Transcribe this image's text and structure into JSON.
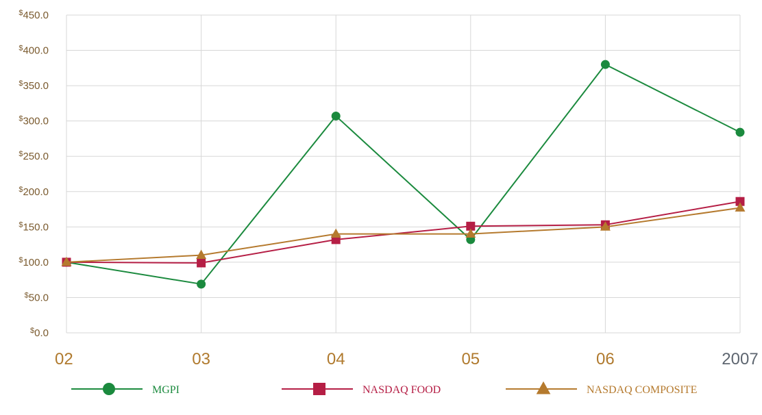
{
  "chart_data": {
    "type": "line",
    "title": "",
    "xlabel": "",
    "ylabel": "",
    "ylim": [
      0,
      450
    ],
    "categories": [
      "02",
      "03",
      "04",
      "05",
      "06",
      "2007"
    ],
    "yticks": [
      {
        "symbol": "$",
        "value": "0.0",
        "v": 0
      },
      {
        "symbol": "$",
        "value": "50.0",
        "v": 50
      },
      {
        "symbol": "$",
        "value": "100.0",
        "v": 100
      },
      {
        "symbol": "$",
        "value": "150.0",
        "v": 150
      },
      {
        "symbol": "$",
        "value": "200.0",
        "v": 200
      },
      {
        "symbol": "$",
        "value": "250.0",
        "v": 250
      },
      {
        "symbol": "$",
        "value": "300.0",
        "v": 300
      },
      {
        "symbol": "$",
        "value": "350.0",
        "v": 350
      },
      {
        "symbol": "$",
        "value": "400.0",
        "v": 400
      },
      {
        "symbol": "$",
        "value": "450.0",
        "v": 450
      }
    ],
    "grid": true,
    "legend_position": "bottom",
    "series": [
      {
        "name": "MGPI",
        "marker": "circle",
        "color": "#1b8a3e",
        "values": [
          100,
          69,
          307,
          132,
          380,
          284
        ]
      },
      {
        "name": "NASDAQ FOOD",
        "marker": "square",
        "color": "#b51e45",
        "values": [
          100,
          99,
          132,
          151,
          153,
          186
        ]
      },
      {
        "name": "NASDAQ COMPOSITE",
        "marker": "triangle",
        "color": "#b57a2e",
        "values": [
          100,
          110,
          140,
          140,
          150,
          177
        ]
      }
    ]
  }
}
